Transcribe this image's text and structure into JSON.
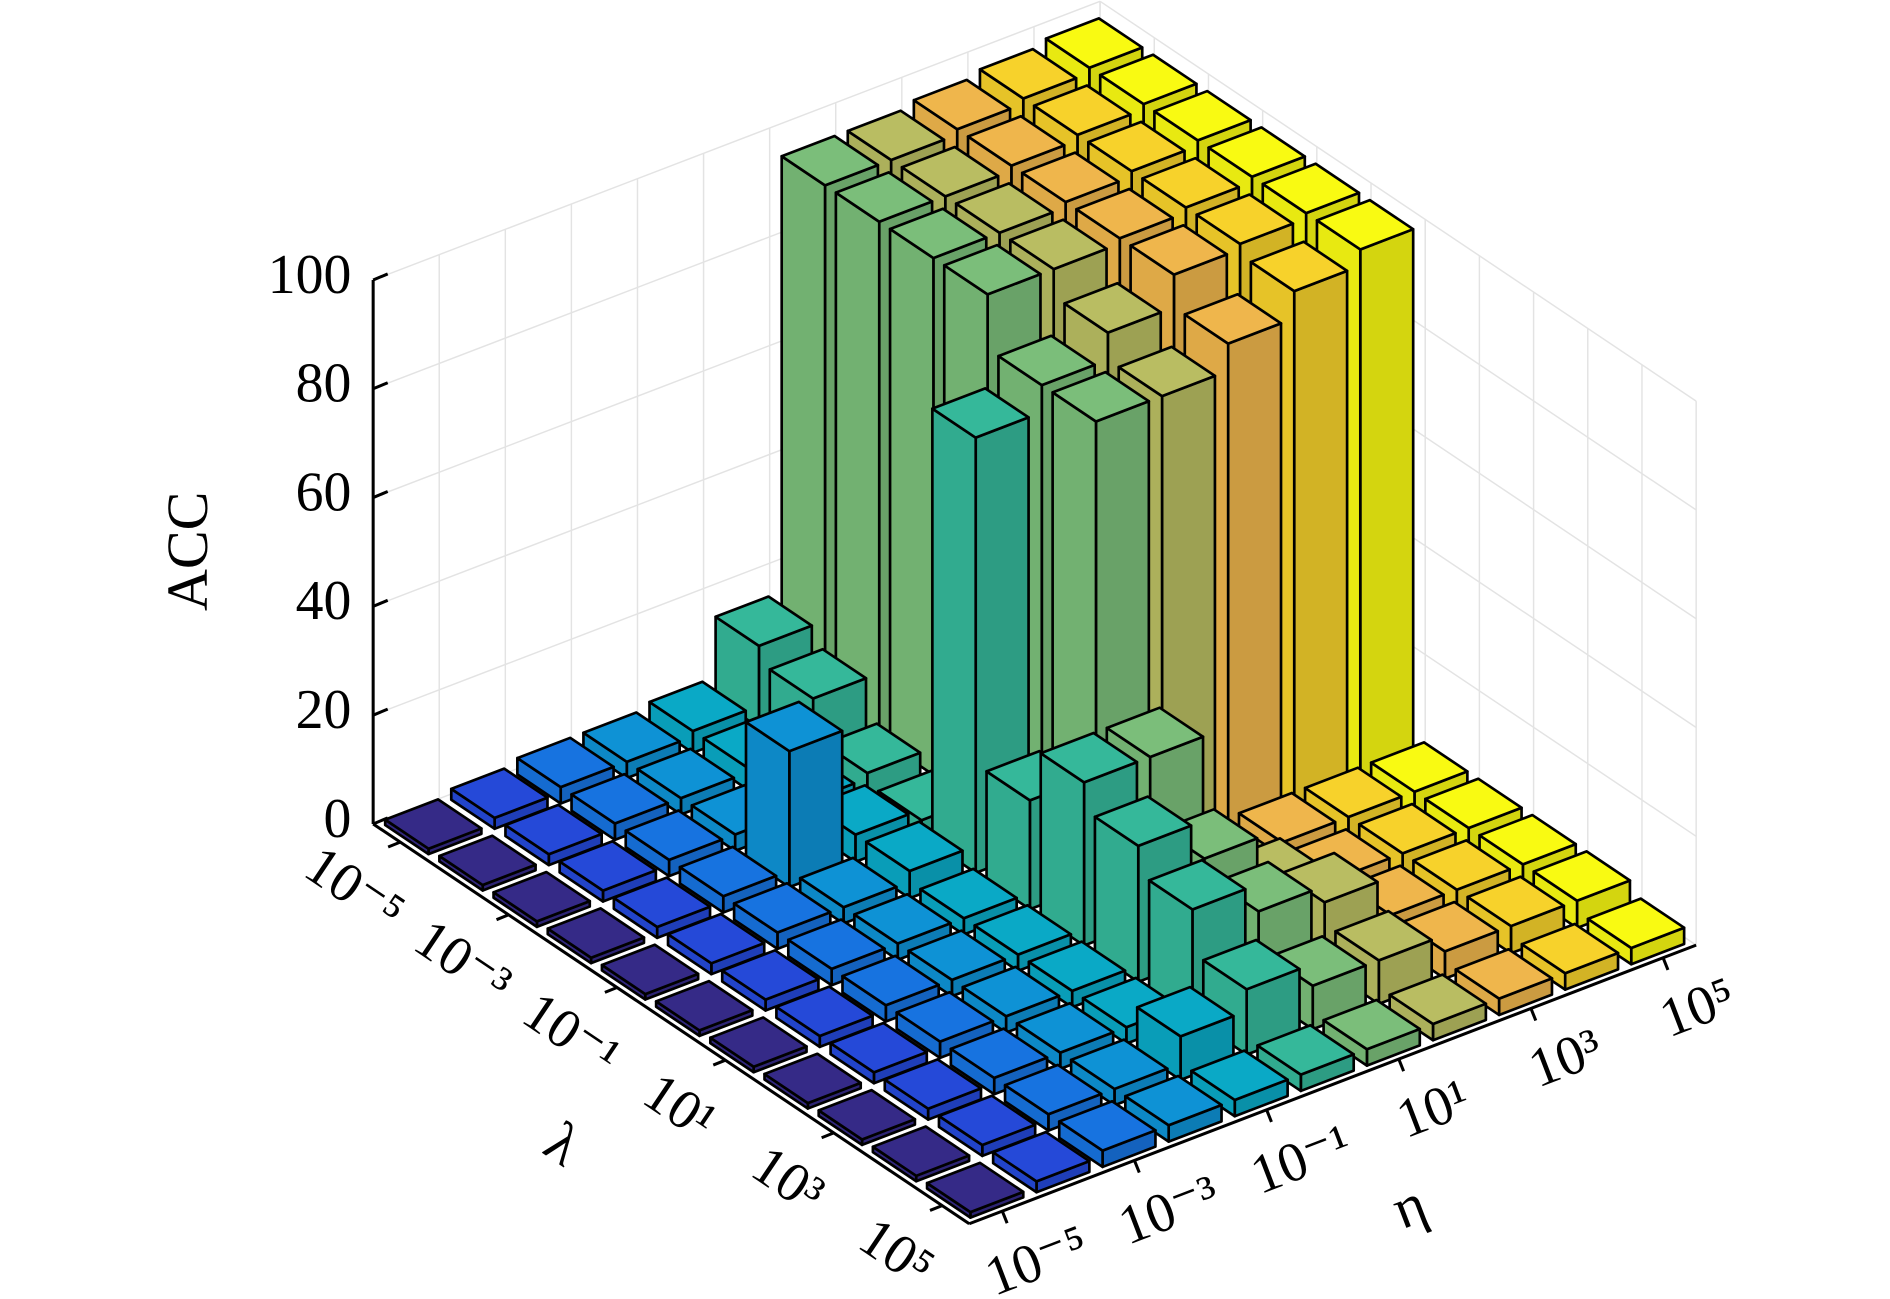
{
  "chart_data": {
    "type": "bar3",
    "zlabel": "ACC",
    "xlabel": "η",
    "ylabel": "λ",
    "x_categories": [
      "10⁻⁵",
      null,
      "10⁻³",
      null,
      "10⁻¹",
      null,
      "10¹",
      null,
      "10³",
      null,
      "10⁵"
    ],
    "y_categories": [
      "10⁻⁵",
      null,
      "10⁻³",
      null,
      "10⁻¹",
      null,
      "10¹",
      null,
      "10³",
      null,
      "10⁵"
    ],
    "zlim": [
      0,
      100
    ],
    "zticks": [
      0,
      20,
      40,
      60,
      80,
      100
    ],
    "grid": true,
    "colors": [
      "#352a87",
      "#2549d8",
      "#1773e0",
      "#0e92d5",
      "#0aa9c6",
      "#35b89a",
      "#7bbe7a",
      "#b9bd62",
      "#efb64c",
      "#f7d22b",
      "#f9fa12"
    ],
    "z": [
      [
        1,
        2,
        3,
        3,
        4,
        15,
        95,
        95,
        96,
        97,
        98
      ],
      [
        1,
        2,
        3,
        3,
        4,
        12,
        95,
        95,
        96,
        97,
        98
      ],
      [
        1,
        2,
        3,
        3,
        4,
        5,
        95,
        95,
        96,
        97,
        98
      ],
      [
        1,
        2,
        3,
        25,
        5,
        3,
        95,
        95,
        96,
        97,
        98
      ],
      [
        1,
        2,
        3,
        3,
        5,
        80,
        85,
        90,
        96,
        97,
        98
      ],
      [
        1,
        2,
        3,
        3,
        3,
        20,
        85,
        85,
        90,
        95,
        98
      ],
      [
        1,
        2,
        3,
        3,
        3,
        30,
        30,
        5,
        5,
        5,
        5
      ],
      [
        1,
        2,
        3,
        3,
        3,
        25,
        18,
        8,
        5,
        5,
        5
      ],
      [
        1,
        2,
        3,
        3,
        3,
        20,
        15,
        12,
        5,
        5,
        5
      ],
      [
        1,
        2,
        3,
        3,
        8,
        12,
        8,
        8,
        5,
        5,
        5
      ],
      [
        1,
        2,
        3,
        3,
        3,
        3,
        3,
        3,
        3,
        3,
        3
      ]
    ]
  }
}
